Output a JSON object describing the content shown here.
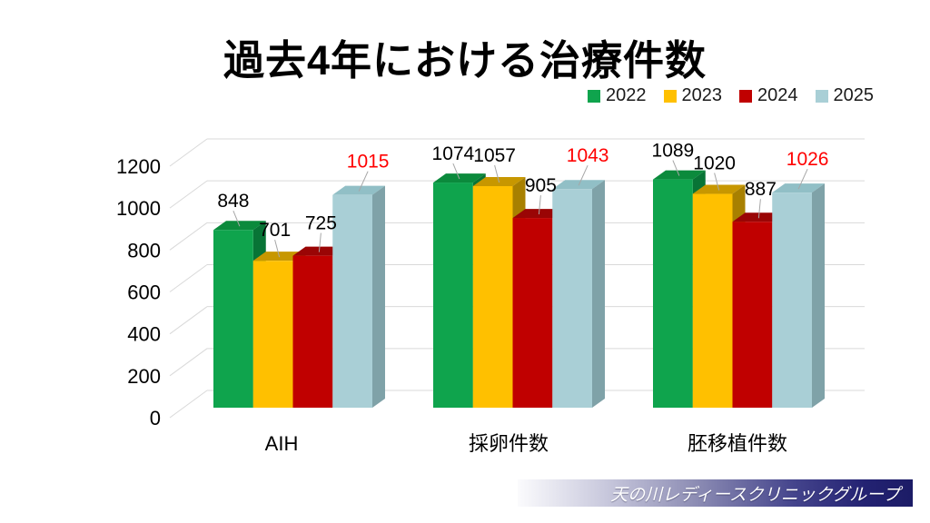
{
  "title": "過去4年における治療件数",
  "footer": {
    "brand": "天の川レディースクリニックグループ"
  },
  "chart_data": {
    "type": "bar",
    "style": "3d-clustered",
    "title": "過去4年における治療件数",
    "categories": [
      "AIH",
      "採卵件数",
      "胚移植件数"
    ],
    "series": [
      {
        "name": "2022",
        "values": [
          848,
          1074,
          1089
        ],
        "color": "#0FA44D",
        "top_color": "#0B8A3C",
        "side_color": "#087436",
        "label_color": "#000000"
      },
      {
        "name": "2023",
        "values": [
          701,
          1057,
          1020
        ],
        "color": "#FFC000",
        "top_color": "#C79700",
        "side_color": "#A88000",
        "label_color": "#000000"
      },
      {
        "name": "2024",
        "values": [
          725,
          905,
          887
        ],
        "color": "#C00000",
        "top_color": "#9A0505",
        "side_color": "#840404",
        "label_color": "#000000"
      },
      {
        "name": "2025",
        "values": [
          1015,
          1043,
          1026
        ],
        "color": "#A9CFD6",
        "top_color": "#91BFC6",
        "side_color": "#7FA2A8",
        "label_color": "#FF0000"
      }
    ],
    "ylim": [
      0,
      1200
    ],
    "ytick_step": 200,
    "yticks": [
      "0",
      "200",
      "400",
      "600",
      "800",
      "1000",
      "1200"
    ],
    "grid": true,
    "gridline_color": "#D9D9D9",
    "leader_line_color": "#A6A6A6",
    "legend_position": "top-right",
    "xlabel": "",
    "ylabel": ""
  }
}
